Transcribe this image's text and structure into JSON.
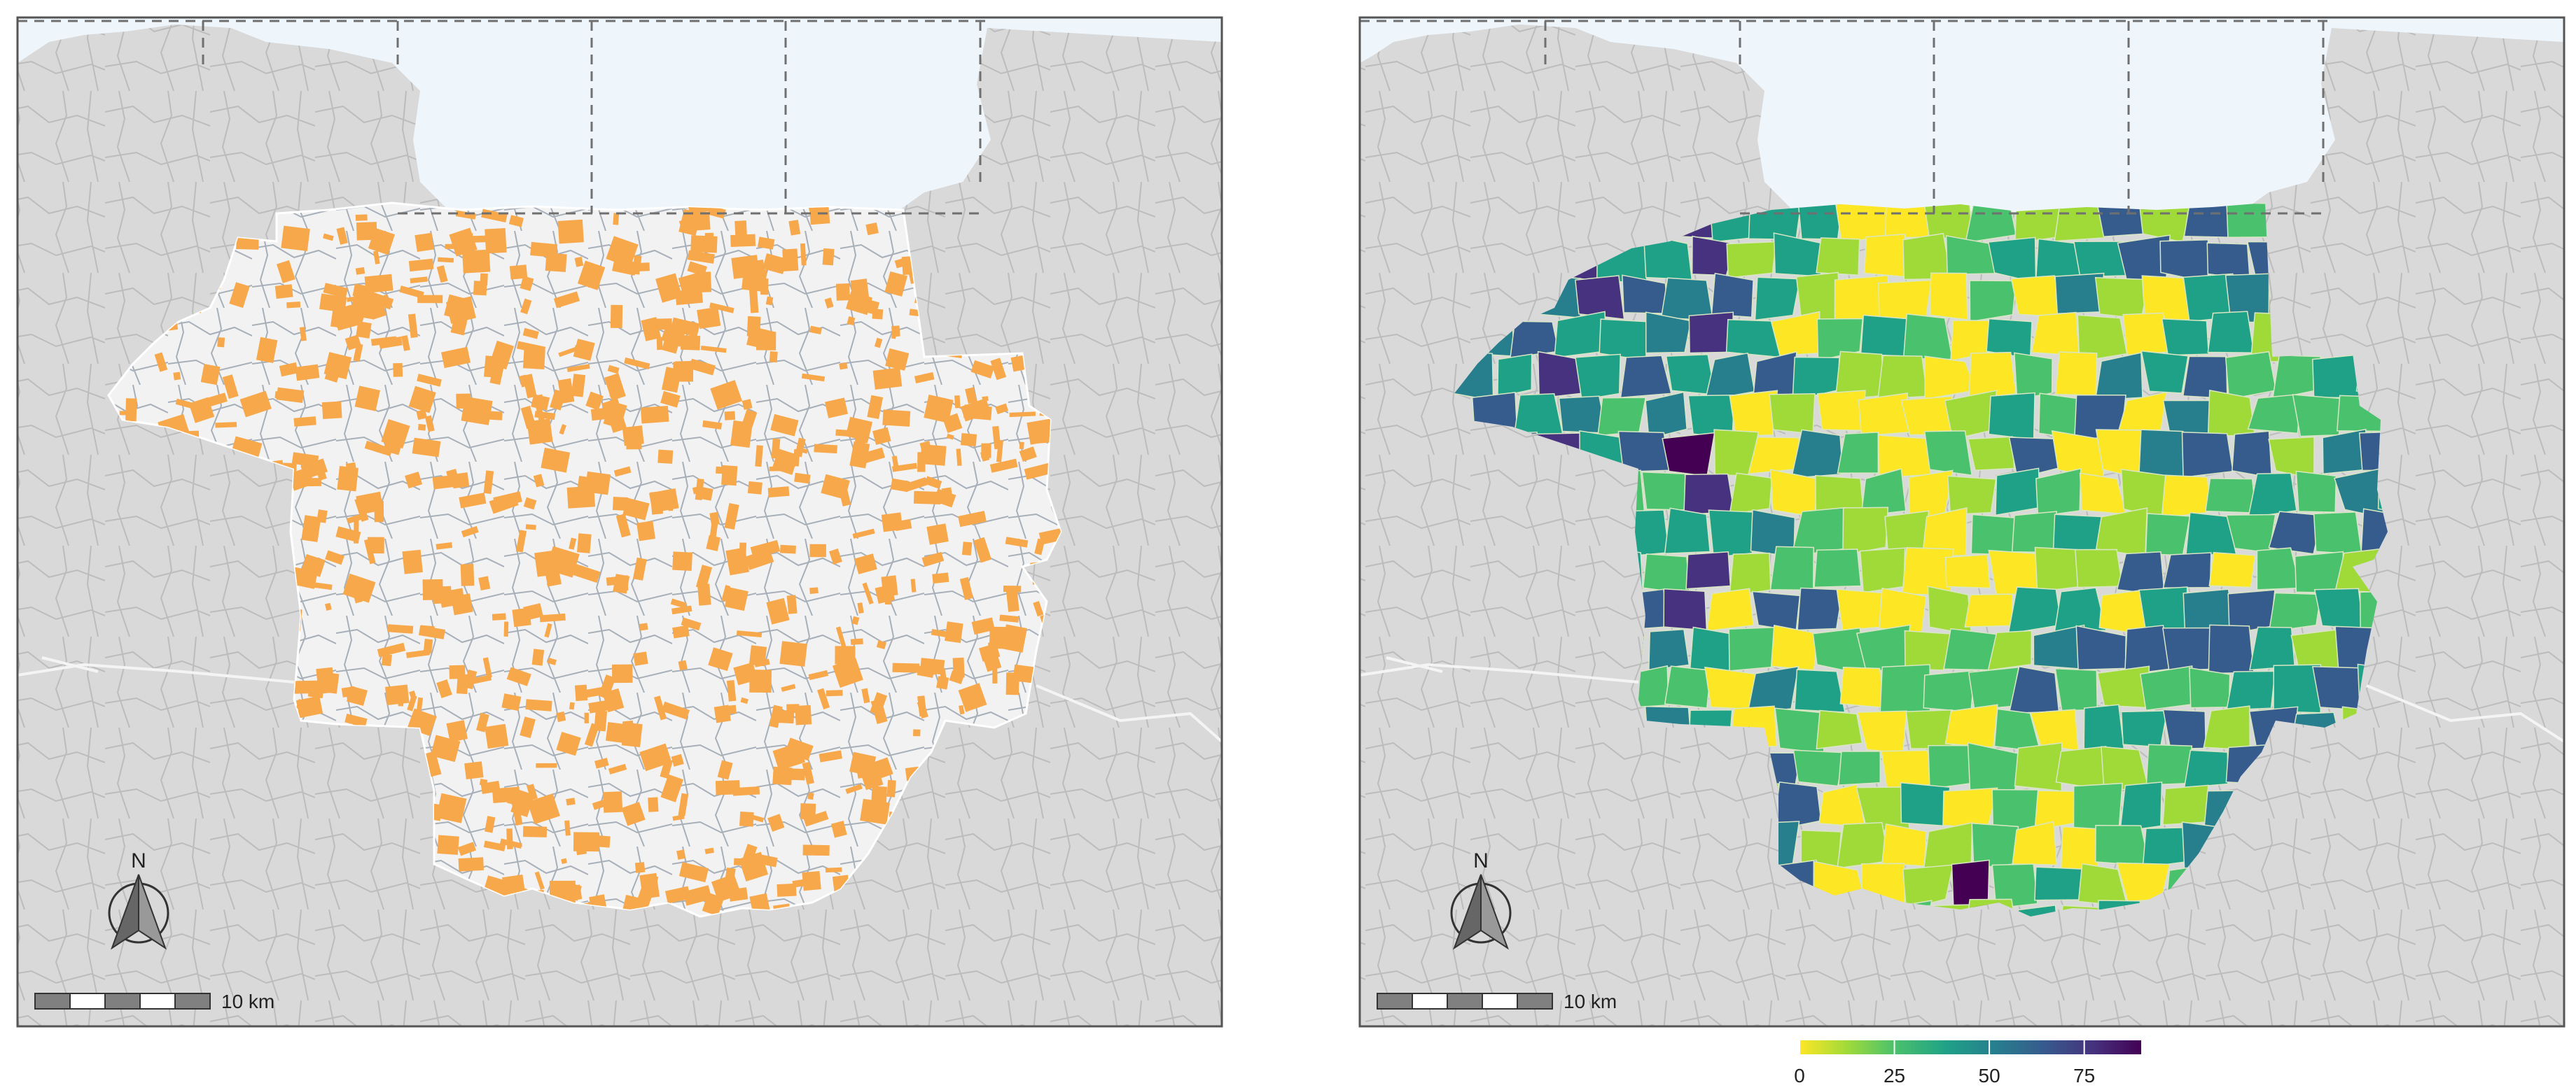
{
  "figure": {
    "panels": [
      {
        "id": "left",
        "description_colors": {
          "background_land": "#d9d9d9",
          "study_area": "#f2f2f2",
          "water": "#eef6fc",
          "feature": "#f7a84b",
          "boundary": "#9aa3ad"
        },
        "north_label": "N",
        "scale_label": "10 km"
      },
      {
        "id": "right",
        "north_label": "N",
        "scale_label": "10 km"
      }
    ],
    "colorbar": {
      "palette": "viridis-reversed",
      "colors": [
        "#fde725",
        "#a0da39",
        "#4ac16d",
        "#1fa187",
        "#277f8e",
        "#365c8d",
        "#46327e",
        "#440154"
      ],
      "ticks": [
        "0",
        "25",
        "50",
        "75"
      ],
      "range": [
        0,
        90
      ]
    },
    "colors": {
      "land": "#d9d9d9",
      "land_line": "#bdbdbd",
      "water": "#eef6fc",
      "frame": "#555555",
      "dashed": "#707070"
    }
  }
}
